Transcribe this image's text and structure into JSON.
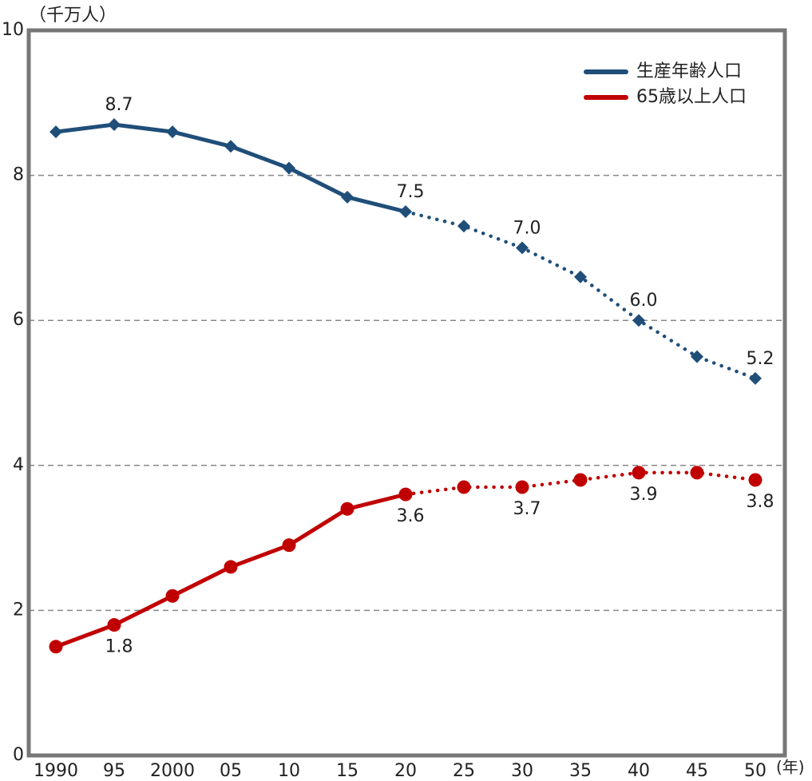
{
  "chart_data": {
    "type": "line",
    "y_label": "（千万人）",
    "x_label": "(年)",
    "categories": [
      "1990",
      "95",
      "2000",
      "05",
      "10",
      "15",
      "20",
      "25",
      "30",
      "35",
      "40",
      "45",
      "50"
    ],
    "projected_from_index": 6,
    "series": [
      {
        "name": "生産年齢人口",
        "color": "#1f4e79",
        "marker": "diamond",
        "values": [
          8.6,
          8.7,
          8.6,
          8.4,
          8.1,
          7.7,
          7.5,
          7.3,
          7.0,
          6.6,
          6.0,
          5.5,
          5.2
        ],
        "value_labels": [
          null,
          "8.7",
          null,
          null,
          null,
          null,
          "7.5",
          null,
          "7.0",
          null,
          "6.0",
          null,
          "5.2"
        ]
      },
      {
        "name": "65歳以上人口",
        "color": "#c00000",
        "marker": "circle",
        "values": [
          1.5,
          1.8,
          2.2,
          2.6,
          2.9,
          3.4,
          3.6,
          3.7,
          3.7,
          3.8,
          3.9,
          3.9,
          3.8
        ],
        "value_labels": [
          null,
          "1.8",
          null,
          null,
          null,
          null,
          "3.6",
          null,
          "3.7",
          null,
          "3.9",
          null,
          "3.8"
        ]
      }
    ],
    "ylim": [
      0,
      10
    ],
    "yticks": [
      0,
      2,
      4,
      6,
      8,
      10
    ],
    "grid": true,
    "legend": "top-right"
  }
}
